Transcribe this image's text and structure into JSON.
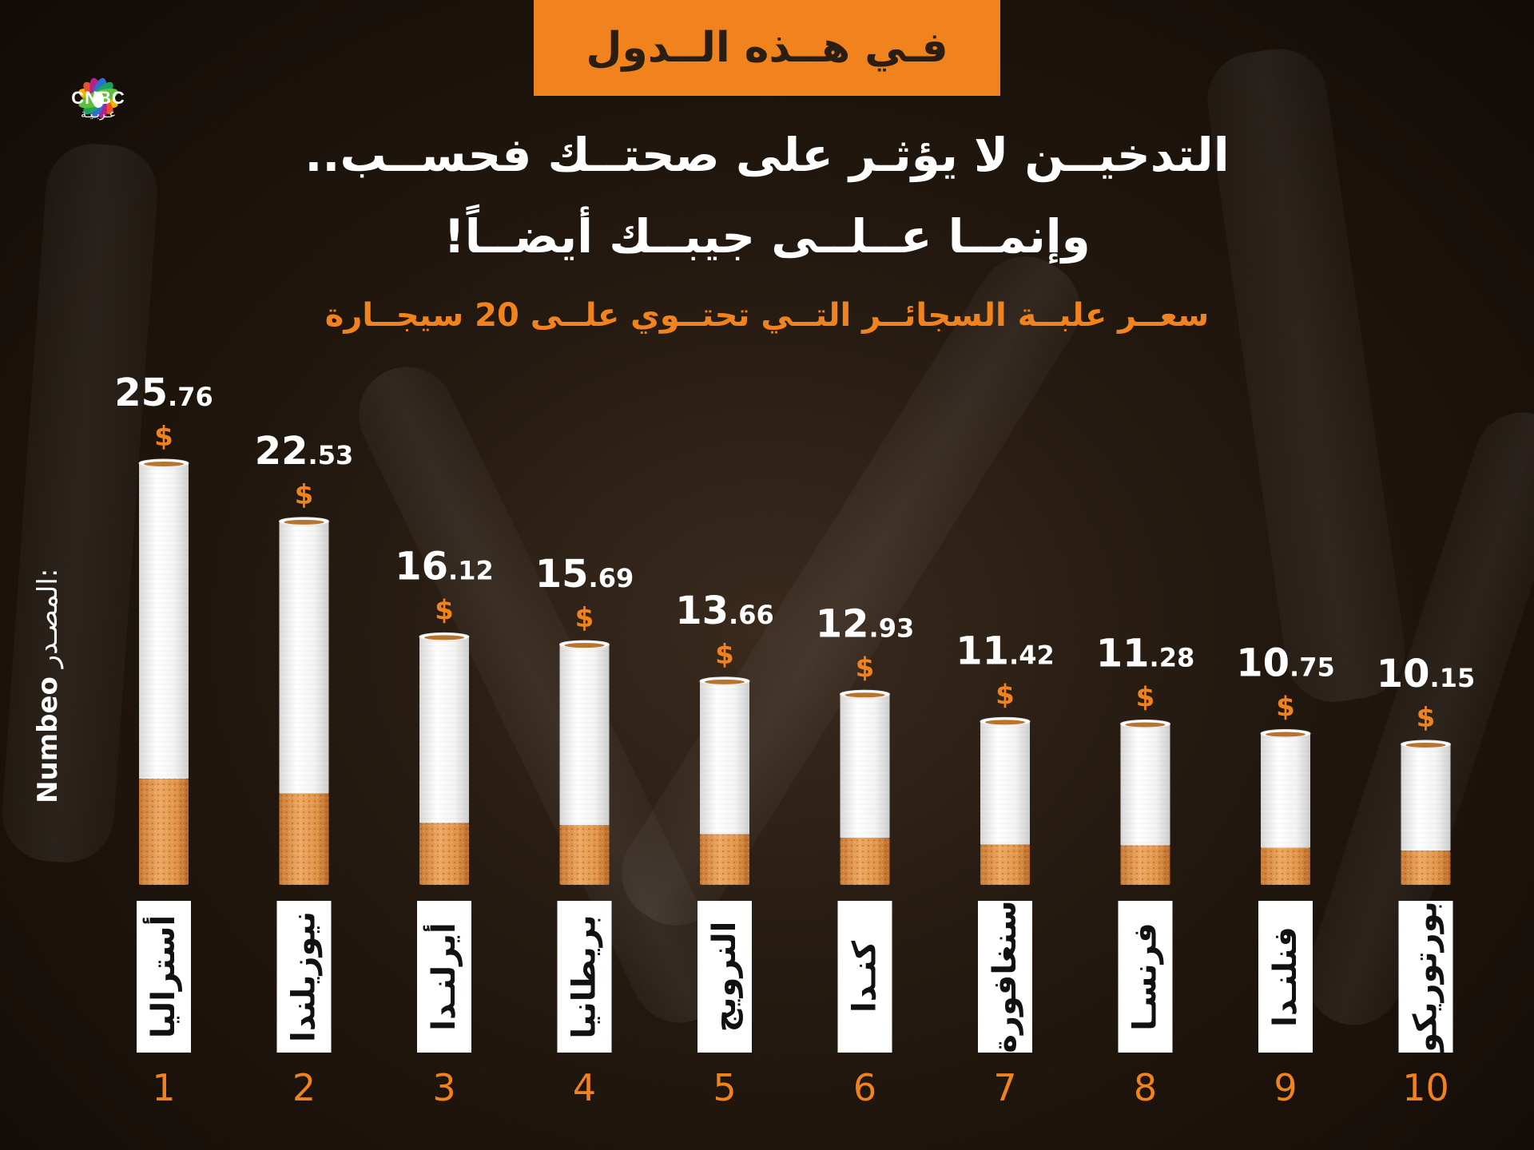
{
  "banner": {
    "text": "فـي هــذه الــدول"
  },
  "logo": {
    "name": "CNBC",
    "subtitle": "عـربـيـة"
  },
  "headline": {
    "line1": "التدخيــن لا يؤثـر على صحتــك فحســب..",
    "line2": "وإنمــا عــلــى جيبــك أيضــاً!"
  },
  "subtitle": "سعــر علبــة السجائــر التــي تحتــوي علــى 20 سيجــارة",
  "source": {
    "label": "المصـدر:",
    "name": "Numbeo"
  },
  "currency_symbol": "$",
  "colors": {
    "accent": "#f0831e",
    "paper": "#ffffff",
    "filter": "#e39a4f",
    "text_dark": "#111111"
  },
  "chart_data": {
    "type": "bar",
    "title": "سعــر علبــة السجائــر التــي تحتــوي علــى 20 سيجــارة",
    "unit": "$",
    "categories": [
      "أستراليا",
      "نيوزيلندا",
      "أيرلنـدا",
      "بريطانيا",
      "النرويج",
      "كنـدا",
      "سنغافورة",
      "فرنسـا",
      "فنلنـدا",
      "بورتوريكو"
    ],
    "ranks": [
      "1",
      "2",
      "3",
      "4",
      "5",
      "6",
      "7",
      "8",
      "9",
      "10"
    ],
    "values": [
      25.76,
      22.53,
      16.12,
      15.69,
      13.66,
      12.93,
      11.42,
      11.28,
      10.75,
      10.15
    ],
    "value_int_labels": [
      "25",
      "22",
      "16",
      "15",
      "13",
      "12",
      "11",
      "11",
      "10",
      "10"
    ],
    "value_dec_labels": [
      ".76",
      ".53",
      ".12",
      ".69",
      ".66",
      ".93",
      ".42",
      ".28",
      ".75",
      ".15"
    ]
  }
}
